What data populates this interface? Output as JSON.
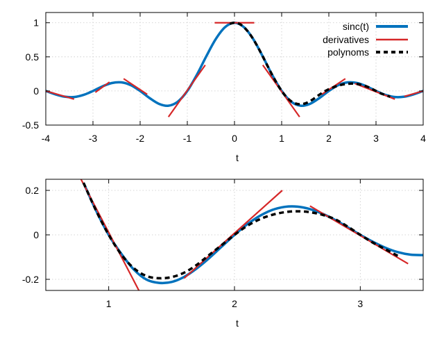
{
  "colors": {
    "sinc": "#0072bd",
    "derivatives": "#d62728",
    "polynoms": "#000000",
    "grid": "#c8c8c8"
  },
  "chart_data": [
    {
      "type": "line",
      "xlabel": "t",
      "ylabel": "",
      "xlim": [
        -4,
        4
      ],
      "ylim": [
        -0.5,
        1.15
      ],
      "xticks": [
        -4,
        -3,
        -2,
        -1,
        0,
        1,
        2,
        3,
        4
      ],
      "xtick_labels": [
        "-4",
        "-3",
        "-2",
        "-1",
        "0",
        "1",
        "2",
        "3",
        "4"
      ],
      "yticks": [
        -0.5,
        0,
        0.5,
        1
      ],
      "ytick_labels": [
        "-0.5",
        "0",
        "0.5",
        "1"
      ],
      "grid": true,
      "legend_position": "top-right",
      "legend": [
        "sinc(t)",
        "derivatives",
        "polynoms"
      ],
      "series": [
        {
          "name": "sinc(t)",
          "style": "solid",
          "x": [
            -4,
            -3.8,
            -3.6,
            -3.4,
            -3.2,
            -3.0,
            -2.8,
            -2.6,
            -2.4,
            -2.2,
            -2.0,
            -1.8,
            -1.6,
            -1.4,
            -1.2,
            -1.0,
            -0.8,
            -0.6,
            -0.4,
            -0.2,
            0,
            0.2,
            0.4,
            0.6,
            0.8,
            1.0,
            1.2,
            1.4,
            1.6,
            1.8,
            2.0,
            2.2,
            2.4,
            2.6,
            2.8,
            3.0,
            3.2,
            3.4,
            3.6,
            3.8,
            4.0
          ],
          "y": [
            0,
            -0.049,
            -0.084,
            -0.089,
            -0.058,
            0,
            0.067,
            0.116,
            0.126,
            0.085,
            0,
            -0.104,
            -0.189,
            -0.216,
            -0.156,
            0,
            0.234,
            0.505,
            0.757,
            0.935,
            1,
            0.935,
            0.757,
            0.505,
            0.234,
            0,
            -0.156,
            -0.216,
            -0.189,
            -0.104,
            0,
            0.085,
            0.126,
            0.116,
            0.067,
            0,
            -0.058,
            -0.089,
            -0.084,
            -0.049,
            0
          ]
        }
      ],
      "derivative_segments": [
        {
          "x": [
            -4.05,
            -3.4
          ],
          "y": [
            0.01,
            -0.12
          ]
        },
        {
          "x": [
            -2.65,
            -2.95
          ],
          "y": [
            0.13,
            -0.02
          ]
        },
        {
          "x": [
            -2.35,
            -1.85
          ],
          "y": [
            0.18,
            -0.05
          ]
        },
        {
          "x": [
            -1.4,
            -0.62
          ],
          "y": [
            -0.38,
            0.38
          ]
        },
        {
          "x": [
            -0.42,
            0.42
          ],
          "y": [
            1,
            1
          ]
        },
        {
          "x": [
            0.6,
            1.38
          ],
          "y": [
            0.38,
            -0.38
          ]
        },
        {
          "x": [
            1.85,
            2.35
          ],
          "y": [
            -0.05,
            0.18
          ]
        },
        {
          "x": [
            2.55,
            3.4
          ],
          "y": [
            0.11,
            -0.12
          ]
        },
        {
          "x": [
            3.6,
            4.05
          ],
          "y": [
            -0.08,
            0.01
          ]
        }
      ],
      "polynom_points": {
        "x": [
          -0.1,
          0,
          0.1,
          0.2,
          0.3,
          0.4,
          0.5,
          0.6,
          0.7,
          0.8,
          0.9,
          1.0,
          1.1,
          1.2,
          1.3,
          1.4,
          1.5,
          1.6,
          1.7,
          1.8,
          1.9,
          2.0,
          2.1,
          2.2,
          2.3,
          2.4,
          2.5,
          2.6,
          2.7,
          2.8,
          2.9,
          3.0,
          3.1,
          3.2,
          3.3
        ],
        "y": [
          0.985,
          1.0,
          0.985,
          0.935,
          0.858,
          0.757,
          0.637,
          0.505,
          0.368,
          0.234,
          0.109,
          0.0,
          -0.088,
          -0.15,
          -0.185,
          -0.195,
          -0.182,
          -0.15,
          -0.105,
          -0.055,
          -0.01,
          0.025,
          0.055,
          0.078,
          0.095,
          0.105,
          0.108,
          0.102,
          0.088,
          0.066,
          0.035,
          0.0,
          -0.035,
          -0.06,
          -0.085
        ]
      }
    },
    {
      "type": "line",
      "xlabel": "t",
      "ylabel": "",
      "xlim": [
        0.5,
        3.5
      ],
      "ylim": [
        -0.25,
        0.25
      ],
      "xticks": [
        1,
        2,
        3
      ],
      "xtick_labels": [
        "1",
        "2",
        "3"
      ],
      "yticks": [
        -0.2,
        0,
        0.2
      ],
      "ytick_labels": [
        "-0.2",
        "0",
        "0.2"
      ],
      "grid": true,
      "series": [
        {
          "name": "sinc(t)",
          "style": "solid",
          "x": [
            0.8,
            0.9,
            1.0,
            1.1,
            1.2,
            1.3,
            1.4,
            1.5,
            1.6,
            1.7,
            1.8,
            1.9,
            2.0,
            2.1,
            2.2,
            2.3,
            2.4,
            2.5,
            2.6,
            2.7,
            2.8,
            2.9,
            3.0,
            3.1,
            3.2,
            3.3,
            3.4,
            3.5
          ],
          "y": [
            0.234,
            0.109,
            0.0,
            -0.085,
            -0.156,
            -0.201,
            -0.216,
            -0.212,
            -0.189,
            -0.151,
            -0.104,
            -0.052,
            0,
            0.047,
            0.085,
            0.112,
            0.126,
            0.127,
            0.116,
            0.095,
            0.067,
            0.034,
            0,
            -0.031,
            -0.058,
            -0.078,
            -0.089,
            -0.091
          ]
        }
      ],
      "derivative_segments": [
        {
          "x": [
            0.78,
            1.24
          ],
          "y": [
            0.25,
            -0.25
          ]
        },
        {
          "x": [
            1.6,
            2.38
          ],
          "y": [
            -0.195,
            0.2
          ]
        },
        {
          "x": [
            2.6,
            3.38
          ],
          "y": [
            0.13,
            -0.13
          ]
        }
      ],
      "polynom_points": {
        "x": [
          0.8,
          0.9,
          1.0,
          1.1,
          1.2,
          1.3,
          1.4,
          1.5,
          1.6,
          1.7,
          1.8,
          1.9,
          2.0,
          2.1,
          2.2,
          2.3,
          2.4,
          2.5,
          2.6,
          2.7,
          2.8,
          2.9,
          3.0,
          3.1,
          3.2,
          3.3
        ],
        "y": [
          0.234,
          0.109,
          0.0,
          -0.088,
          -0.15,
          -0.185,
          -0.195,
          -0.19,
          -0.17,
          -0.135,
          -0.09,
          -0.045,
          0.0,
          0.04,
          0.07,
          0.09,
          0.102,
          0.106,
          0.102,
          0.09,
          0.07,
          0.037,
          0.0,
          -0.035,
          -0.065,
          -0.095
        ]
      }
    }
  ]
}
